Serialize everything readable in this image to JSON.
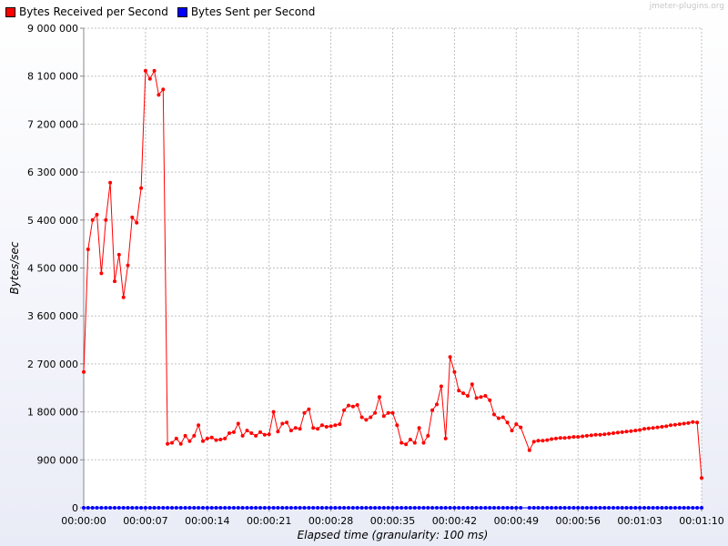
{
  "watermark": "jmeter-plugins.org",
  "chart_data": {
    "type": "line",
    "xlabel": "Elapsed time (granularity: 100 ms)",
    "ylabel": "Bytes/sec",
    "ylim": [
      0,
      9000000
    ],
    "xlim": [
      0,
      70
    ],
    "grid": true,
    "legend_position": "top-left",
    "y_ticks": [
      "0",
      "900 000",
      "1 800 000",
      "2 700 000",
      "3 600 000",
      "4 500 000",
      "5 400 000",
      "6 300 000",
      "7 200 000",
      "8 100 000",
      "9 000 000"
    ],
    "y_tick_values": [
      0,
      900000,
      1800000,
      2700000,
      3600000,
      4500000,
      5400000,
      6300000,
      7200000,
      8100000,
      9000000
    ],
    "x_ticks": [
      "00:00:00",
      "00:00:07",
      "00:00:14",
      "00:00:21",
      "00:00:28",
      "00:00:35",
      "00:00:42",
      "00:00:49",
      "00:00:56",
      "00:01:03",
      "00:01:10"
    ],
    "x_tick_values": [
      0,
      7,
      14,
      21,
      28,
      35,
      42,
      49,
      56,
      63,
      70
    ],
    "series": [
      {
        "name": "Bytes Received per Second",
        "color": "#ff0000",
        "points": [
          [
            0.0,
            2550000
          ],
          [
            0.5,
            4850000
          ],
          [
            1.0,
            5400000
          ],
          [
            1.5,
            5500000
          ],
          [
            2.0,
            4400000
          ],
          [
            2.5,
            5400000
          ],
          [
            3.0,
            6100000
          ],
          [
            3.5,
            4250000
          ],
          [
            4.0,
            4750000
          ],
          [
            4.5,
            3950000
          ],
          [
            5.0,
            4550000
          ],
          [
            5.5,
            5450000
          ],
          [
            6.0,
            5350000
          ],
          [
            6.5,
            6000000
          ],
          [
            7.0,
            8200000
          ],
          [
            7.5,
            8050000
          ],
          [
            8.0,
            8200000
          ],
          [
            8.5,
            7750000
          ],
          [
            9.0,
            7850000
          ],
          [
            9.5,
            1200000
          ],
          [
            10.0,
            1220000
          ],
          [
            10.5,
            1300000
          ],
          [
            11.0,
            1200000
          ],
          [
            11.5,
            1350000
          ],
          [
            12.0,
            1250000
          ],
          [
            12.5,
            1350000
          ],
          [
            13.0,
            1550000
          ],
          [
            13.5,
            1250000
          ],
          [
            14.0,
            1300000
          ],
          [
            14.5,
            1320000
          ],
          [
            15.0,
            1270000
          ],
          [
            15.5,
            1280000
          ],
          [
            16.0,
            1300000
          ],
          [
            16.5,
            1400000
          ],
          [
            17.0,
            1420000
          ],
          [
            17.5,
            1580000
          ],
          [
            18.0,
            1350000
          ],
          [
            18.5,
            1450000
          ],
          [
            19.0,
            1400000
          ],
          [
            19.5,
            1350000
          ],
          [
            20.0,
            1420000
          ],
          [
            20.5,
            1370000
          ],
          [
            21.0,
            1380000
          ],
          [
            21.5,
            1800000
          ],
          [
            22.0,
            1430000
          ],
          [
            22.5,
            1580000
          ],
          [
            23.0,
            1600000
          ],
          [
            23.5,
            1450000
          ],
          [
            24.0,
            1500000
          ],
          [
            24.5,
            1480000
          ],
          [
            25.0,
            1780000
          ],
          [
            25.5,
            1850000
          ],
          [
            26.0,
            1500000
          ],
          [
            26.5,
            1480000
          ],
          [
            27.0,
            1550000
          ],
          [
            27.5,
            1520000
          ],
          [
            28.0,
            1530000
          ],
          [
            28.5,
            1550000
          ],
          [
            29.0,
            1570000
          ],
          [
            29.5,
            1830000
          ],
          [
            30.0,
            1920000
          ],
          [
            30.5,
            1900000
          ],
          [
            31.0,
            1930000
          ],
          [
            31.5,
            1700000
          ],
          [
            32.0,
            1650000
          ],
          [
            32.5,
            1700000
          ],
          [
            33.0,
            1780000
          ],
          [
            33.5,
            2080000
          ],
          [
            34.0,
            1720000
          ],
          [
            34.5,
            1780000
          ],
          [
            35.0,
            1780000
          ],
          [
            35.5,
            1550000
          ],
          [
            36.0,
            1220000
          ],
          [
            36.5,
            1190000
          ],
          [
            37.0,
            1280000
          ],
          [
            37.5,
            1220000
          ],
          [
            38.0,
            1500000
          ],
          [
            38.5,
            1220000
          ],
          [
            39.0,
            1350000
          ],
          [
            39.5,
            1830000
          ],
          [
            40.0,
            1940000
          ],
          [
            40.5,
            2280000
          ],
          [
            41.0,
            1300000
          ],
          [
            41.5,
            2830000
          ],
          [
            42.0,
            2550000
          ],
          [
            42.5,
            2200000
          ],
          [
            43.0,
            2150000
          ],
          [
            43.5,
            2100000
          ],
          [
            44.0,
            2320000
          ],
          [
            44.5,
            2060000
          ],
          [
            45.0,
            2080000
          ],
          [
            45.5,
            2100000
          ],
          [
            46.0,
            2020000
          ],
          [
            46.5,
            1750000
          ],
          [
            47.0,
            1680000
          ],
          [
            47.5,
            1700000
          ],
          [
            48.0,
            1600000
          ],
          [
            48.5,
            1450000
          ],
          [
            49.0,
            1570000
          ],
          [
            49.5,
            1510000
          ],
          [
            50.5,
            1080000
          ],
          [
            51.0,
            1240000
          ],
          [
            51.5,
            1260000
          ],
          [
            52.0,
            1260000
          ],
          [
            52.5,
            1270000
          ],
          [
            53.0,
            1290000
          ],
          [
            53.5,
            1300000
          ],
          [
            54.0,
            1310000
          ],
          [
            54.5,
            1310000
          ],
          [
            55.0,
            1320000
          ],
          [
            55.5,
            1330000
          ],
          [
            56.0,
            1330000
          ],
          [
            56.5,
            1340000
          ],
          [
            57.0,
            1350000
          ],
          [
            57.5,
            1360000
          ],
          [
            58.0,
            1370000
          ],
          [
            58.5,
            1370000
          ],
          [
            59.0,
            1380000
          ],
          [
            59.5,
            1390000
          ],
          [
            60.0,
            1400000
          ],
          [
            60.5,
            1410000
          ],
          [
            61.0,
            1420000
          ],
          [
            61.5,
            1430000
          ],
          [
            62.0,
            1440000
          ],
          [
            62.5,
            1450000
          ],
          [
            63.0,
            1460000
          ],
          [
            63.5,
            1480000
          ],
          [
            64.0,
            1490000
          ],
          [
            64.5,
            1500000
          ],
          [
            65.0,
            1510000
          ],
          [
            65.5,
            1520000
          ],
          [
            66.0,
            1530000
          ],
          [
            66.5,
            1550000
          ],
          [
            67.0,
            1560000
          ],
          [
            67.5,
            1570000
          ],
          [
            68.0,
            1580000
          ],
          [
            68.5,
            1590000
          ],
          [
            69.0,
            1610000
          ],
          [
            69.5,
            1600000
          ],
          [
            70.0,
            560000
          ]
        ]
      },
      {
        "name": "Bytes Sent per Second",
        "color": "#0000ff",
        "points": [
          [
            0.0,
            0
          ],
          [
            0.5,
            0
          ],
          [
            1.0,
            0
          ],
          [
            1.5,
            0
          ],
          [
            2.0,
            0
          ],
          [
            2.5,
            0
          ],
          [
            3.0,
            0
          ],
          [
            3.5,
            0
          ],
          [
            4.0,
            0
          ],
          [
            4.5,
            0
          ],
          [
            5.0,
            0
          ],
          [
            5.5,
            0
          ],
          [
            6.0,
            0
          ],
          [
            6.5,
            0
          ],
          [
            7.0,
            0
          ],
          [
            7.5,
            0
          ],
          [
            8.0,
            0
          ],
          [
            8.5,
            0
          ],
          [
            9.0,
            0
          ],
          [
            9.5,
            0
          ],
          [
            10.0,
            0
          ],
          [
            10.5,
            0
          ],
          [
            11.0,
            0
          ],
          [
            11.5,
            0
          ],
          [
            12.0,
            0
          ],
          [
            12.5,
            0
          ],
          [
            13.0,
            0
          ],
          [
            13.5,
            0
          ],
          [
            14.0,
            0
          ],
          [
            14.5,
            0
          ],
          [
            15.0,
            0
          ],
          [
            15.5,
            0
          ],
          [
            16.0,
            0
          ],
          [
            16.5,
            0
          ],
          [
            17.0,
            0
          ],
          [
            17.5,
            0
          ],
          [
            18.0,
            0
          ],
          [
            18.5,
            0
          ],
          [
            19.0,
            0
          ],
          [
            19.5,
            0
          ],
          [
            20.0,
            0
          ],
          [
            20.5,
            0
          ],
          [
            21.0,
            0
          ],
          [
            21.5,
            0
          ],
          [
            22.0,
            0
          ],
          [
            22.5,
            0
          ],
          [
            23.0,
            0
          ],
          [
            23.5,
            0
          ],
          [
            24.0,
            0
          ],
          [
            24.5,
            0
          ],
          [
            25.0,
            0
          ],
          [
            25.5,
            0
          ],
          [
            26.0,
            0
          ],
          [
            26.5,
            0
          ],
          [
            27.0,
            0
          ],
          [
            27.5,
            0
          ],
          [
            28.0,
            0
          ],
          [
            28.5,
            0
          ],
          [
            29.0,
            0
          ],
          [
            29.5,
            0
          ],
          [
            30.0,
            0
          ],
          [
            30.5,
            0
          ],
          [
            31.0,
            0
          ],
          [
            31.5,
            0
          ],
          [
            32.0,
            0
          ],
          [
            32.5,
            0
          ],
          [
            33.0,
            0
          ],
          [
            33.5,
            0
          ],
          [
            34.0,
            0
          ],
          [
            34.5,
            0
          ],
          [
            35.0,
            0
          ],
          [
            35.5,
            0
          ],
          [
            36.0,
            0
          ],
          [
            36.5,
            0
          ],
          [
            37.0,
            0
          ],
          [
            37.5,
            0
          ],
          [
            38.0,
            0
          ],
          [
            38.5,
            0
          ],
          [
            39.0,
            0
          ],
          [
            39.5,
            0
          ],
          [
            40.0,
            0
          ],
          [
            40.5,
            0
          ],
          [
            41.0,
            0
          ],
          [
            41.5,
            0
          ],
          [
            42.0,
            0
          ],
          [
            42.5,
            0
          ],
          [
            43.0,
            0
          ],
          [
            43.5,
            0
          ],
          [
            44.0,
            0
          ],
          [
            44.5,
            0
          ],
          [
            45.0,
            0
          ],
          [
            45.5,
            0
          ],
          [
            46.0,
            0
          ],
          [
            46.5,
            0
          ],
          [
            47.0,
            0
          ],
          [
            47.5,
            0
          ],
          [
            48.0,
            0
          ],
          [
            48.5,
            0
          ],
          [
            49.0,
            0
          ],
          [
            49.5,
            0
          ],
          [
            50.5,
            0
          ],
          [
            51.0,
            0
          ],
          [
            51.5,
            0
          ],
          [
            52.0,
            0
          ],
          [
            52.5,
            0
          ],
          [
            53.0,
            0
          ],
          [
            53.5,
            0
          ],
          [
            54.0,
            0
          ],
          [
            54.5,
            0
          ],
          [
            55.0,
            0
          ],
          [
            55.5,
            0
          ],
          [
            56.0,
            0
          ],
          [
            56.5,
            0
          ],
          [
            57.0,
            0
          ],
          [
            57.5,
            0
          ],
          [
            58.0,
            0
          ],
          [
            58.5,
            0
          ],
          [
            59.0,
            0
          ],
          [
            59.5,
            0
          ],
          [
            60.0,
            0
          ],
          [
            60.5,
            0
          ],
          [
            61.0,
            0
          ],
          [
            61.5,
            0
          ],
          [
            62.0,
            0
          ],
          [
            62.5,
            0
          ],
          [
            63.0,
            0
          ],
          [
            63.5,
            0
          ],
          [
            64.0,
            0
          ],
          [
            64.5,
            0
          ],
          [
            65.0,
            0
          ],
          [
            65.5,
            0
          ],
          [
            66.0,
            0
          ],
          [
            66.5,
            0
          ],
          [
            67.0,
            0
          ],
          [
            67.5,
            0
          ],
          [
            68.0,
            0
          ],
          [
            68.5,
            0
          ],
          [
            69.0,
            0
          ],
          [
            69.5,
            0
          ],
          [
            70.0,
            0
          ]
        ]
      }
    ]
  }
}
